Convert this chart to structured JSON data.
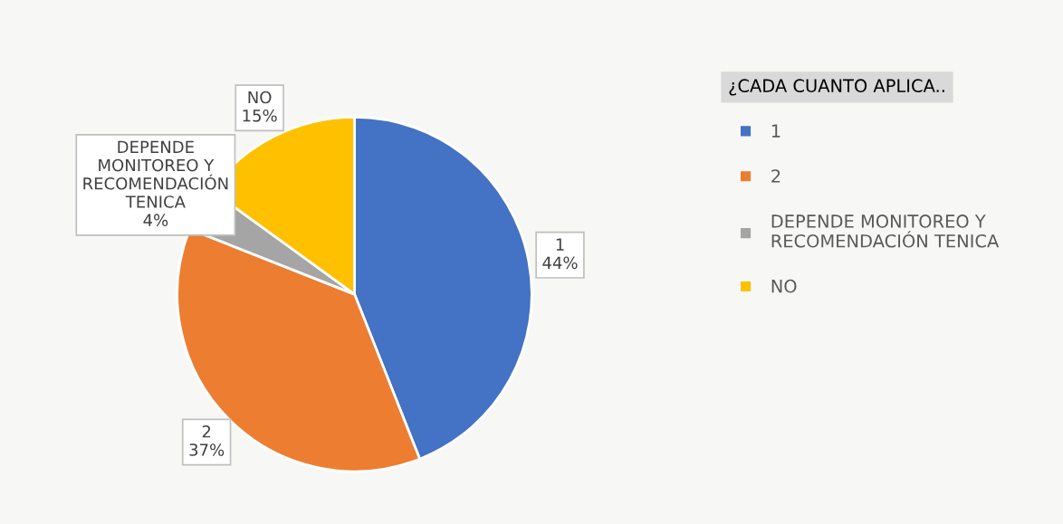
{
  "chart_data": {
    "type": "pie",
    "categories": [
      "1",
      "2",
      "DEPENDE MONITOREO Y RECOMENDACIÓN TENICA",
      "NO"
    ],
    "values": [
      44,
      37,
      4,
      15
    ],
    "colors": [
      "#4472c4",
      "#ed7d31",
      "#a5a5a5",
      "#ffc000"
    ],
    "legend_title": "¿CADA CUANTO APLICA..",
    "legend": "right",
    "value_labels": [
      "44%",
      "37%",
      "4%",
      "15%"
    ]
  }
}
